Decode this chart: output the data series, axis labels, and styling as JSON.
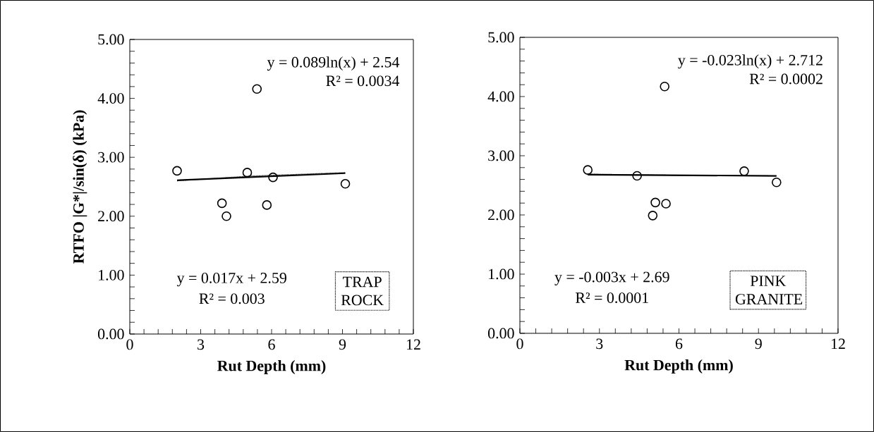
{
  "chart_data": [
    {
      "type": "scatter",
      "xlabel": "Rut Depth (mm)",
      "ylabel": "RTFO |G*|/sin(δ)  (kPa)",
      "xlim": [
        0,
        12
      ],
      "ylim": [
        0,
        5
      ],
      "xticks": [
        0,
        3,
        6,
        9,
        12
      ],
      "yticks": [
        {
          "value": 0,
          "label": "0.00"
        },
        {
          "value": 1,
          "label": "1.00"
        },
        {
          "value": 2,
          "label": "2.00"
        },
        {
          "value": 3,
          "label": "3.00"
        },
        {
          "value": 4,
          "label": "4.00"
        },
        {
          "value": 5,
          "label": "5.00"
        }
      ],
      "grid": false,
      "series": [
        {
          "marker": "circle",
          "color": "#000000",
          "x": [
            2.0,
            3.9,
            4.09,
            4.97,
            5.38,
            5.8,
            6.06,
            9.12
          ],
          "values": [
            2.77,
            2.22,
            2.0,
            2.74,
            4.16,
            2.19,
            2.66,
            2.55
          ]
        },
        {
          "type": "line",
          "line_style": "solid",
          "color": "#000000",
          "x": [
            2.0,
            9.12
          ],
          "values": [
            2.61,
            2.73
          ]
        },
        {
          "type": "line",
          "line_style": "dotted",
          "color": "#000000",
          "x": [
            2.0,
            5.0,
            9.12
          ],
          "values": [
            2.6,
            2.68,
            2.74
          ]
        }
      ],
      "annotations": [
        "y = 0.089ln(x) + 2.54",
        "R² = 0.0034",
        "y = 0.017x + 2.59",
        "R² = 0.003",
        "TRAP ROCK"
      ]
    },
    {
      "type": "scatter",
      "xlabel": "Rut Depth (mm)",
      "xlim": [
        0,
        12
      ],
      "ylim": [
        0,
        5
      ],
      "xticks": [
        0,
        3,
        6,
        9,
        12
      ],
      "yticks": [
        {
          "value": 0,
          "label": "0.00"
        },
        {
          "value": 1,
          "label": "1.00"
        },
        {
          "value": 2,
          "label": "2.00"
        },
        {
          "value": 3,
          "label": "3.00"
        },
        {
          "value": 4,
          "label": "4.00"
        },
        {
          "value": 5,
          "label": "5.00"
        }
      ],
      "grid": false,
      "series": [
        {
          "marker": "circle",
          "color": "#000000",
          "x": [
            2.56,
            4.42,
            5.01,
            5.11,
            5.46,
            5.51,
            8.46,
            9.68
          ],
          "values": [
            2.76,
            2.66,
            1.99,
            2.21,
            4.17,
            2.19,
            2.74,
            2.55
          ]
        },
        {
          "type": "line",
          "line_style": "solid",
          "color": "#000000",
          "x": [
            2.56,
            9.68
          ],
          "values": [
            2.68,
            2.66
          ]
        },
        {
          "type": "line",
          "line_style": "dotted",
          "color": "#000000",
          "x": [
            2.56,
            6.0,
            9.68
          ],
          "values": [
            2.69,
            2.67,
            2.66
          ]
        }
      ],
      "annotations": [
        "y = -0.023ln(x) + 2.712",
        "R² = 0.0002",
        "y = -0.003x + 2.69",
        "R² = 0.0001",
        "PINK GRANITE"
      ]
    }
  ]
}
